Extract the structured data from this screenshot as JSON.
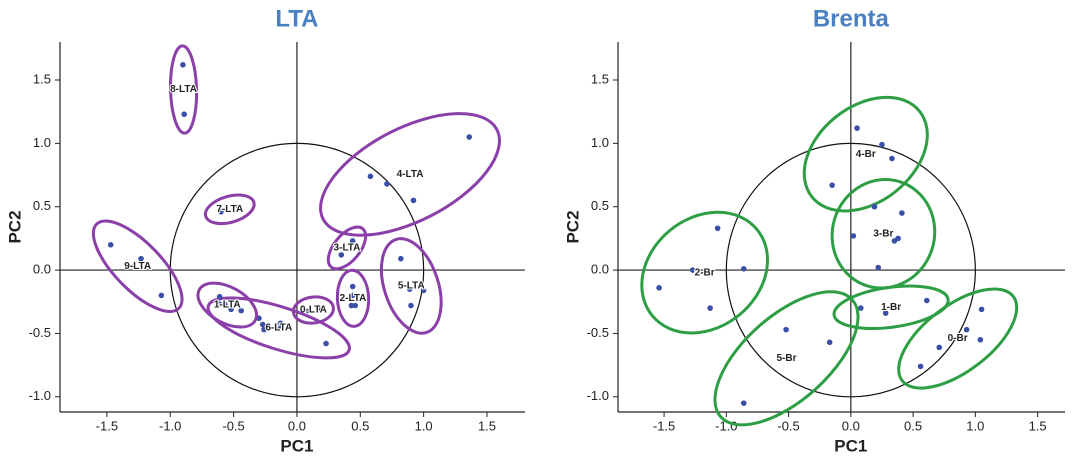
{
  "chart_data": [
    {
      "type": "scatter",
      "title": "LTA",
      "xlabel": "PC1",
      "ylabel": "PC2",
      "xlim": [
        -1.87,
        1.8
      ],
      "ylim": [
        -1.12,
        1.8
      ],
      "xticks": [
        -1.5,
        {
          "value": -1.0,
          "label": "-1.0"
        },
        -0.5,
        {
          "value": 0,
          "label": "0.0"
        },
        0.5,
        {
          "value": 1.0,
          "label": "1.0"
        },
        1.5
      ],
      "yticks": [
        {
          "value": -1.0,
          "label": "-1.0"
        },
        -0.5,
        {
          "value": 0,
          "label": "0.0"
        },
        0.5,
        {
          "value": 1.0,
          "label": "1.0"
        },
        1.5
      ],
      "unit_circle": true,
      "point_color": "#3a4fa8",
      "series": [
        {
          "name": "8-LTA",
          "color": "#8b3fa8",
          "x": [
            -0.9,
            -0.89
          ],
          "values": [
            1.62,
            1.23
          ]
        },
        {
          "name": "7-LTA",
          "color": "#8b3fa8",
          "x": [
            -0.6,
            -0.46
          ],
          "values": [
            0.46,
            0.5
          ]
        },
        {
          "name": "4-LTA",
          "color": "#8b3fa8",
          "x": [
            0.58,
            0.71,
            0.92,
            1.36
          ],
          "values": [
            0.74,
            0.68,
            0.55,
            1.05
          ]
        },
        {
          "name": "3-LTA",
          "color": "#8b3fa8",
          "x": [
            0.44,
            0.35
          ],
          "values": [
            0.23,
            0.12
          ]
        },
        {
          "name": "9-LTA",
          "color": "#8b3fa8",
          "x": [
            -1.47,
            -1.23,
            -1.07
          ],
          "values": [
            0.2,
            0.09,
            -0.2
          ]
        },
        {
          "name": "5-LTA",
          "color": "#8b3fa8",
          "x": [
            0.82,
            0.89,
            1.0,
            0.9
          ],
          "values": [
            0.09,
            -0.15,
            -0.16,
            -0.28
          ]
        },
        {
          "name": "2-LTA",
          "color": "#8b3fa8",
          "x": [
            0.44,
            0.44,
            0.43,
            0.46
          ],
          "values": [
            -0.13,
            -0.2,
            -0.28,
            -0.28
          ]
        },
        {
          "name": "0-LTA",
          "color": "#8b3fa8",
          "x": [
            0.09,
            0.17
          ],
          "values": [
            -0.32,
            -0.31
          ]
        },
        {
          "name": "6-LTA",
          "color": "#8b3fa8",
          "x": [
            -0.3,
            -0.27,
            -0.26,
            -0.13,
            -0.13,
            0.23
          ],
          "values": [
            -0.38,
            -0.43,
            -0.47,
            -0.42,
            -0.46,
            -0.58
          ]
        },
        {
          "name": "1-LTA",
          "color": "#8b3fa8",
          "x": [
            -0.61,
            -0.57,
            -0.61,
            -0.52,
            -0.44
          ],
          "values": [
            -0.21,
            -0.27,
            -0.27,
            -0.31,
            -0.32
          ]
        }
      ]
    },
    {
      "type": "scatter",
      "title": "Brenta",
      "xlabel": "PC1",
      "ylabel": "PC2",
      "xlim": [
        -1.87,
        1.72
      ],
      "ylim": [
        -1.12,
        1.8
      ],
      "xticks": [
        -1.5,
        {
          "value": -1.0,
          "label": "-1.0"
        },
        -0.5,
        {
          "value": 0,
          "label": "0.0"
        },
        0.5,
        {
          "value": 1.0,
          "label": "1.0"
        },
        1.5
      ],
      "yticks": [
        {
          "value": -1.0,
          "label": "-1.0"
        },
        -0.5,
        {
          "value": 0,
          "label": "0.0"
        },
        0.5,
        {
          "value": 1.0,
          "label": "1.0"
        },
        1.5
      ],
      "unit_circle": true,
      "point_color": "#3a4fa8",
      "series": [
        {
          "name": "4-Br",
          "color": "#2e9e45",
          "x": [
            0.05,
            0.25,
            0.33,
            -0.15
          ],
          "values": [
            1.12,
            0.99,
            0.88,
            0.67
          ]
        },
        {
          "name": "3-Br",
          "color": "#2e9e45",
          "x": [
            0.19,
            0.41,
            0.02,
            0.35,
            0.38,
            0.22
          ],
          "values": [
            0.5,
            0.45,
            0.27,
            0.23,
            0.25,
            0.02
          ]
        },
        {
          "name": "2-Br",
          "color": "#2e9e45",
          "x": [
            -1.07,
            -1.27,
            -0.86,
            -1.54,
            -1.13
          ],
          "values": [
            0.33,
            0.0,
            0.01,
            -0.14,
            -0.3
          ]
        },
        {
          "name": "1-Br",
          "color": "#2e9e45",
          "x": [
            0.08,
            0.28,
            0.61
          ],
          "values": [
            -0.3,
            -0.34,
            -0.24
          ]
        },
        {
          "name": "0-Br",
          "color": "#2e9e45",
          "x": [
            1.05,
            0.93,
            1.04,
            0.71,
            0.56
          ],
          "values": [
            -0.31,
            -0.47,
            -0.55,
            -0.61,
            -0.76
          ]
        },
        {
          "name": "5-Br",
          "color": "#2e9e45",
          "x": [
            -0.52,
            -0.17,
            -0.86
          ],
          "values": [
            -0.47,
            -0.57,
            -1.05
          ]
        }
      ]
    }
  ]
}
